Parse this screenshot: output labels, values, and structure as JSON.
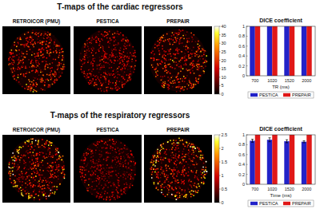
{
  "panels": [
    {
      "title": "T-maps of the cardiac regressors",
      "image_labels": [
        "RETROICOR (PMU)",
        "PESTICA",
        "PREPAIR"
      ],
      "colorbar": {
        "range": [
          0,
          40
        ],
        "ticks": [
          0,
          5,
          10,
          15,
          20,
          25,
          30,
          35,
          40
        ]
      }
    },
    {
      "title": "T-maps of the respiratory regressors",
      "image_labels": [
        "RETROICOR (PMU)",
        "PESTICA",
        "PREPAIR"
      ],
      "colorbar": {
        "range": [
          0,
          2.5
        ],
        "ticks": [
          0,
          0.5,
          1,
          1.5,
          2,
          2.5
        ]
      }
    }
  ],
  "chart_data": [
    {
      "type": "bar",
      "title": "DICE coefficient",
      "xlabel": "TR (ms)",
      "categories": [
        "700",
        "1020",
        "1520",
        "2000"
      ],
      "series": [
        {
          "name": "PESTICA",
          "color": "#2222c8",
          "values": [
            1,
            1,
            1,
            1
          ]
        },
        {
          "name": "PREPAIR",
          "color": "#e01818",
          "values": [
            1,
            1,
            1,
            1
          ]
        }
      ],
      "ylim": [
        0,
        1
      ],
      "yticks": [
        0,
        0.2,
        0.4,
        0.6,
        0.8,
        1
      ],
      "legend": "bottom"
    },
    {
      "type": "bar",
      "title": "DICE coefficient",
      "xlabel": "Time (ms)",
      "categories": [
        "700",
        "1020",
        "1520",
        "2000"
      ],
      "series": [
        {
          "name": "PESTICA",
          "color": "#2222c8",
          "values": [
            0.88,
            0.9,
            0.87,
            0.86
          ],
          "errors": [
            0.03,
            0.04,
            0.03,
            0.02
          ]
        },
        {
          "name": "PREPAIR",
          "color": "#e01818",
          "values": [
            1,
            1,
            1,
            1
          ]
        }
      ],
      "ylim": [
        0,
        1
      ],
      "yticks": [
        0,
        0.2,
        0.4,
        0.6,
        0.8,
        1
      ],
      "legend": "bottom"
    }
  ]
}
